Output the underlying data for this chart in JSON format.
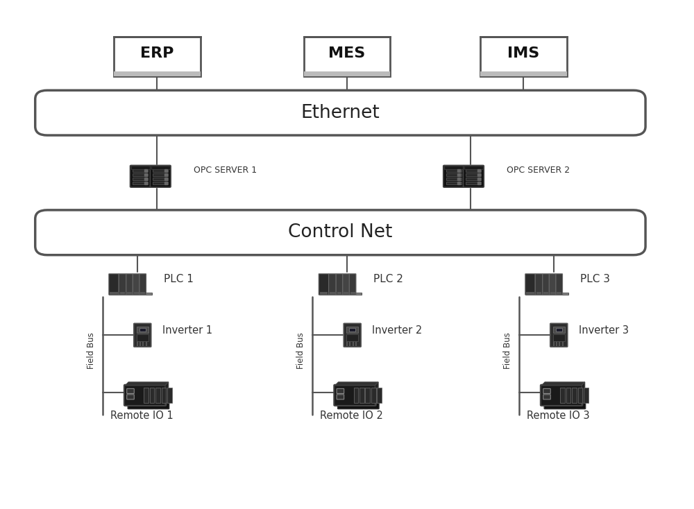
{
  "bg_color": "#ffffff",
  "erp_label": "ERP",
  "mes_label": "MES",
  "ims_label": "IMS",
  "ethernet_label": "Ethernet",
  "control_net_label": "Control Net",
  "opc1_label": "OPC SERVER 1",
  "opc2_label": "OPC SERVER 2",
  "plc_labels": [
    "PLC 1",
    "PLC 2",
    "PLC 3"
  ],
  "inverter_labels": [
    "Inverter 1",
    "Inverter 2",
    "Inverter 3"
  ],
  "remote_io_labels": [
    "Remote IO 1",
    "Remote IO 2",
    "Remote IO 3"
  ],
  "field_bus_label": "Field Bus",
  "box_fill": "#ffffff",
  "box_edge": "#555555",
  "box_edge2": "#aaaaaa",
  "line_color": "#555555",
  "text_color": "#333333",
  "bus_fill": "#ffffff",
  "bus_edge": "#555555",
  "device_dark": "#1a1a1a",
  "device_mid": "#3a3a3a",
  "device_light": "#888888"
}
